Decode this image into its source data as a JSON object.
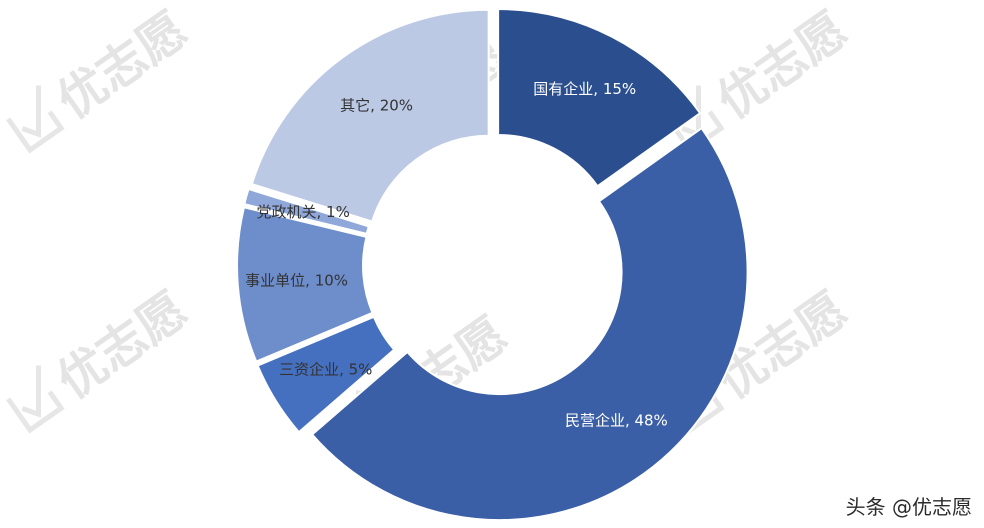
{
  "chart_data": {
    "type": "pie",
    "variant": "donut",
    "slices": [
      {
        "label": "国有企业",
        "value": 15,
        "display": "国有企业, 15%",
        "color": "#2b4f8e",
        "label_color": "#ffffff"
      },
      {
        "label": "民营企业",
        "value": 48,
        "display": "民营企业, 48%",
        "color": "#3b5fa6",
        "label_color": "#ffffff"
      },
      {
        "label": "三资企业",
        "value": 5,
        "display": "三资企业, 5%",
        "color": "#4570c0",
        "label_color": "#333333"
      },
      {
        "label": "事业单位",
        "value": 10,
        "display": "事业单位, 10%",
        "color": "#6e8dcb",
        "label_color": "#333333"
      },
      {
        "label": "党政机关",
        "value": 1,
        "display": "党政机关, 1%",
        "color": "#8fa7d9",
        "label_color": "#333333"
      },
      {
        "label": "其它",
        "value": 20,
        "display": "其它, 20%",
        "color": "#bcc9e5",
        "label_color": "#333333"
      }
    ],
    "exploded": true,
    "legend": "none"
  },
  "watermark": {
    "text": "优志愿",
    "color": "#e4e4e4"
  },
  "credit": {
    "text": "头条 @优志愿"
  }
}
